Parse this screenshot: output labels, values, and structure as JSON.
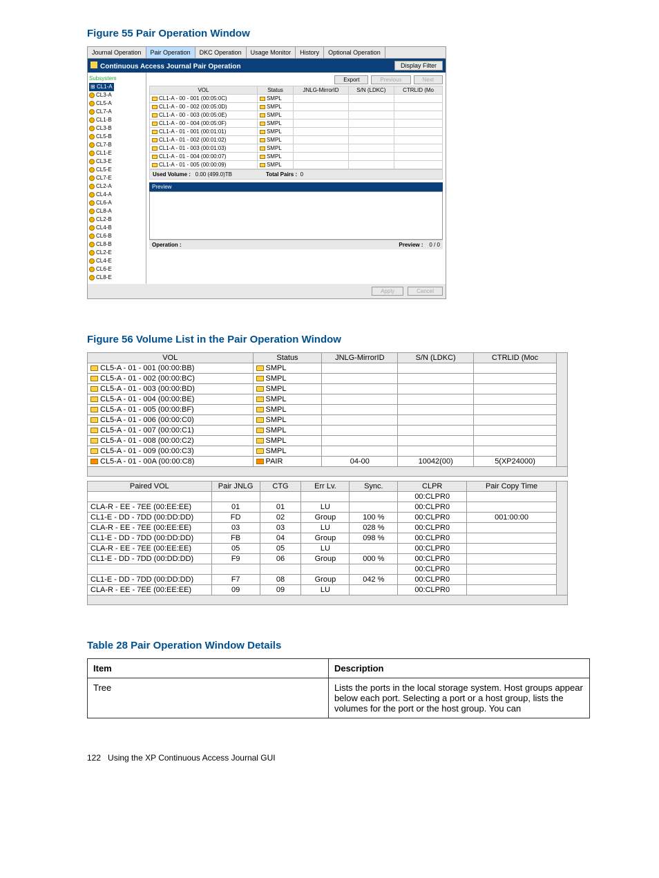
{
  "fig55": {
    "title": "Figure 55 Pair Operation Window",
    "tabs": [
      "Journal Operation",
      "Pair Operation",
      "DKC Operation",
      "Usage Monitor",
      "History",
      "Optional Operation"
    ],
    "active_tab": 1,
    "bar_title": "Continuous Access Journal Pair Operation",
    "display_filter": "Display Filter",
    "btns": {
      "export": "Export",
      "prev": "Previous",
      "next": "Next"
    },
    "tree_root": "Subsystem",
    "tree_sel": "CL1-A",
    "tree_items": [
      "CL3-A",
      "CL5-A",
      "CL7-A",
      "CL1-B",
      "CL3-B",
      "CL5-B",
      "CL7-B",
      "CL1-E",
      "CL3-E",
      "CL5-E",
      "CL7-E",
      "CL2-A",
      "CL4-A",
      "CL6-A",
      "CL8-A",
      "CL2-B",
      "CL4-B",
      "CL6-B",
      "CL8-B",
      "CL2-E",
      "CL4-E",
      "CL6-E",
      "CL8-E"
    ],
    "cols": [
      "VOL",
      "Status",
      "JNLG-MirrorID",
      "S/N (LDKC)",
      "CTRLID (Mo"
    ],
    "rows": [
      [
        "CL1-A - 00 - 001 (00:05:0C)",
        "SMPL",
        "",
        "",
        ""
      ],
      [
        "CL1-A - 00 - 002 (00:05:0D)",
        "SMPL",
        "",
        "",
        ""
      ],
      [
        "CL1-A - 00 - 003 (00:05:0E)",
        "SMPL",
        "",
        "",
        ""
      ],
      [
        "CL1-A - 00 - 004 (00:05:0F)",
        "SMPL",
        "",
        "",
        ""
      ],
      [
        "CL1-A - 01 - 001 (00:01:01)",
        "SMPL",
        "",
        "",
        ""
      ],
      [
        "CL1-A - 01 - 002 (00:01:02)",
        "SMPL",
        "",
        "",
        ""
      ],
      [
        "CL1-A - 01 - 003 (00:01:03)",
        "SMPL",
        "",
        "",
        ""
      ],
      [
        "CL1-A - 01 - 004 (00:00:07)",
        "SMPL",
        "",
        "",
        ""
      ],
      [
        "CL1-A - 01 - 005 (00:00:09)",
        "SMPL",
        "",
        "",
        ""
      ]
    ],
    "used_vol_label": "Used Volume :",
    "used_vol": "0.00 (499.0)TB",
    "total_pairs_label": "Total Pairs :",
    "total_pairs": "0",
    "preview": "Preview",
    "op_label": "Operation :",
    "prev_label": "Preview :",
    "prev_count": "0 / 0",
    "apply": "Apply",
    "cancel": "Cancel"
  },
  "fig56": {
    "title": "Figure 56 Volume List in the Pair Operation Window",
    "a_cols": [
      "VOL",
      "Status",
      "JNLG-MirrorID",
      "S/N (LDKC)",
      "CTRLID (Moc"
    ],
    "a_rows": [
      [
        "CL5-A - 01 - 001 (00:00:BB)",
        "SMPL",
        "",
        "",
        ""
      ],
      [
        "CL5-A - 01 - 002 (00:00:BC)",
        "SMPL",
        "",
        "",
        ""
      ],
      [
        "CL5-A - 01 - 003 (00:00:BD)",
        "SMPL",
        "",
        "",
        ""
      ],
      [
        "CL5-A - 01 - 004 (00:00:BE)",
        "SMPL",
        "",
        "",
        ""
      ],
      [
        "CL5-A - 01 - 005 (00:00:BF)",
        "SMPL",
        "",
        "",
        ""
      ],
      [
        "CL5-A - 01 - 006 (00:00:C0)",
        "SMPL",
        "",
        "",
        ""
      ],
      [
        "CL5-A - 01 - 007 (00:00:C1)",
        "SMPL",
        "",
        "",
        ""
      ],
      [
        "CL5-A - 01 - 008 (00:00:C2)",
        "SMPL",
        "",
        "",
        ""
      ],
      [
        "CL5-A - 01 - 009 (00:00:C3)",
        "SMPL",
        "",
        "",
        ""
      ],
      [
        "CL5-A - 01 - 00A (00:00:C8)",
        "PAIR",
        "04-00",
        "10042(00)",
        "5(XP24000)"
      ]
    ],
    "b_cols": [
      "Paired VOL",
      "Pair JNLG",
      "CTG",
      "Err Lv.",
      "Sync.",
      "CLPR",
      "Pair Copy Time"
    ],
    "b_rows": [
      [
        "",
        "",
        "",
        "",
        "",
        "00:CLPR0",
        ""
      ],
      [
        "CLA-R - EE - 7EE (00:EE:EE)",
        "01",
        "01",
        "LU",
        "",
        "00:CLPR0",
        ""
      ],
      [
        "CL1-E - DD - 7DD (00:DD:DD)",
        "FD",
        "02",
        "Group",
        "100 %",
        "00:CLPR0",
        "001:00:00"
      ],
      [
        "CLA-R - EE - 7EE (00:EE:EE)",
        "03",
        "03",
        "LU",
        "028 %",
        "00:CLPR0",
        ""
      ],
      [
        "CL1-E - DD - 7DD (00:DD:DD)",
        "FB",
        "04",
        "Group",
        "098 %",
        "00:CLPR0",
        ""
      ],
      [
        "CLA-R - EE - 7EE (00:EE:EE)",
        "05",
        "05",
        "LU",
        "",
        "00:CLPR0",
        ""
      ],
      [
        "CL1-E - DD - 7DD (00:DD:DD)",
        "F9",
        "06",
        "Group",
        "000 %",
        "00:CLPR0",
        ""
      ],
      [
        "",
        "",
        "",
        "",
        "",
        "00:CLPR0",
        ""
      ],
      [
        "CL1-E - DD - 7DD (00:DD:DD)",
        "F7",
        "08",
        "Group",
        "042 %",
        "00:CLPR0",
        ""
      ],
      [
        "CLA-R - EE - 7EE (00:EE:EE)",
        "09",
        "09",
        "LU",
        "",
        "00:CLPR0",
        ""
      ]
    ]
  },
  "tbl28": {
    "title": "Table 28 Pair Operation Window Details",
    "head": [
      "Item",
      "Description"
    ],
    "rows": [
      [
        "Tree",
        "Lists the ports in the local storage system. Host groups appear below each port. Selecting a port or a host group, lists the volumes for the port or the host group. You can"
      ]
    ]
  },
  "footer": {
    "page": "122",
    "chap": "Using the XP Continuous Access Journal GUI"
  }
}
